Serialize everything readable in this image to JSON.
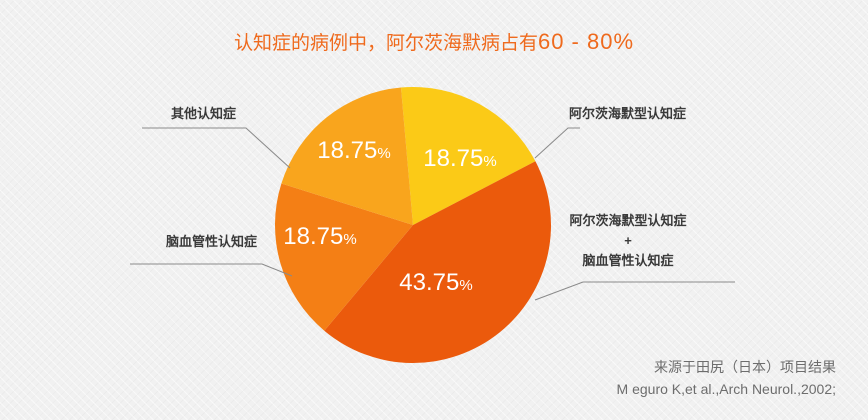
{
  "title": {
    "text": "认知症的病例中，阿尔茨海默病占有",
    "range": "60 - 80%"
  },
  "source": {
    "line1": "来源于田尻（日本）项目结果",
    "line2": "M eguro K,et al.,Arch Neurol.,2002;"
  },
  "colors": {
    "background": "#f1f1f1",
    "title": "#ef6a1d",
    "label": "#3a3a3a",
    "leader": "#8a8a8a"
  },
  "chart_data": {
    "type": "pie",
    "value_unit": "%",
    "slices": [
      {
        "key": "alzheimer",
        "label_lines": [
          "阿尔茨海默型认知症"
        ],
        "value": 18.75,
        "display": "18.75",
        "color": "#fbca17"
      },
      {
        "key": "mixed",
        "label_lines": [
          "阿尔茨海默型认知症",
          "+",
          "脑血管性认知症"
        ],
        "value": 43.75,
        "display": "43.75",
        "color": "#eb5a0c"
      },
      {
        "key": "vascular",
        "label_lines": [
          "脑血管性认知症"
        ],
        "value": 18.75,
        "display": "18.75",
        "color": "#f47f15"
      },
      {
        "key": "other",
        "label_lines": [
          "其他认知症"
        ],
        "value": 18.75,
        "display": "18.75",
        "color": "#f9a51d"
      }
    ]
  }
}
